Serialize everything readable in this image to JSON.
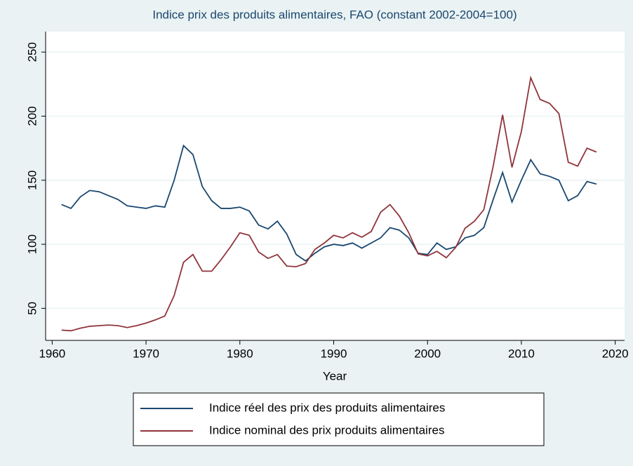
{
  "chart_data": {
    "type": "line",
    "title": "Indice prix des produits alimentaires, FAO  (constant 2002-2004=100)",
    "x_label": "Year",
    "x": [
      1961,
      1962,
      1963,
      1964,
      1965,
      1966,
      1967,
      1968,
      1969,
      1970,
      1971,
      1972,
      1973,
      1974,
      1975,
      1976,
      1977,
      1978,
      1979,
      1980,
      1981,
      1982,
      1983,
      1984,
      1985,
      1986,
      1987,
      1988,
      1989,
      1990,
      1991,
      1992,
      1993,
      1994,
      1995,
      1996,
      1997,
      1998,
      1999,
      2000,
      2001,
      2002,
      2003,
      2004,
      2005,
      2006,
      2007,
      2008,
      2009,
      2010,
      2011,
      2012,
      2013,
      2014,
      2015,
      2016,
      2017,
      2018
    ],
    "series": [
      {
        "name": "Indice réel des prix des produits alimentaires",
        "color": "#1a476f",
        "values": [
          131,
          128,
          137,
          142,
          141,
          138,
          135,
          130,
          129,
          128,
          130,
          129,
          150,
          177,
          170,
          145,
          134,
          128,
          128,
          129,
          126,
          115,
          112,
          118,
          108,
          92,
          87,
          93,
          98,
          100,
          99,
          101,
          97,
          101,
          105,
          113,
          111,
          105,
          93,
          92,
          101,
          96,
          98,
          105,
          107,
          113,
          135,
          156,
          133,
          150,
          166,
          155,
          153,
          150,
          134,
          138,
          149,
          147
        ]
      },
      {
        "name": "Indice nominal des prix produits alimentaires",
        "color": "#90353b",
        "values": [
          33,
          32.5,
          34.5,
          36,
          36.5,
          37,
          36.5,
          35,
          36.5,
          38.5,
          41,
          44,
          60,
          86,
          92,
          79,
          79,
          88,
          98,
          109,
          107,
          94,
          89,
          92,
          83,
          82.5,
          85,
          96,
          101,
          107,
          105,
          109,
          105.5,
          110,
          125,
          131,
          122,
          109,
          92.5,
          91,
          94.5,
          89.5,
          97.5,
          112.5,
          118,
          127,
          161,
          201,
          160,
          188,
          230,
          213,
          210,
          202,
          164,
          161,
          175,
          172
        ]
      }
    ],
    "xlim": [
      1959.3,
      2021
    ],
    "xticks": [
      1960,
      1970,
      1980,
      1990,
      2000,
      2010,
      2020
    ],
    "ylim": [
      25,
      266
    ],
    "yticks": [
      50,
      100,
      150,
      200,
      250
    ],
    "grid": true,
    "legend": "bottom"
  }
}
